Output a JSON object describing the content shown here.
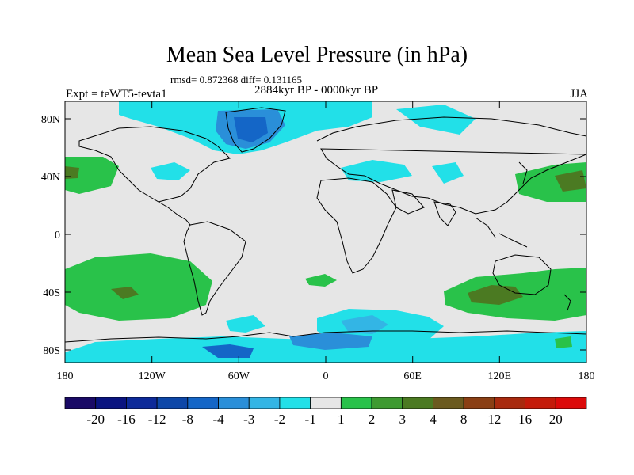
{
  "title": "Mean Sea Level Pressure (in hPa)",
  "stats": "rmsd= 0.872368 diff= 0.131165",
  "experiment": "Expt = teWT5-tevta1",
  "period": "2884kyr BP - 0000kyr BP",
  "season": "JJA",
  "lat_ticks": [
    "80N",
    "40N",
    "0",
    "40S",
    "80S"
  ],
  "lon_ticks": [
    "180",
    "120W",
    "60W",
    "0",
    "60E",
    "120E",
    "180"
  ],
  "colorbar": {
    "labels": [
      "-20",
      "-16",
      "-12",
      "-8",
      "-4",
      "-3",
      "-2",
      "-1",
      "1",
      "2",
      "3",
      "4",
      "8",
      "12",
      "16",
      "20"
    ],
    "colors": [
      "#1a0a66",
      "#0a1480",
      "#0d2a99",
      "#0d47a8",
      "#1466c7",
      "#2a8fd9",
      "#33b5e5",
      "#22e0e8",
      "#e6e6e6",
      "#29c24a",
      "#3e9a31",
      "#4b7a22",
      "#6b5a1f",
      "#8a3f14",
      "#a82a0e",
      "#c41b0a",
      "#dc0a0a"
    ]
  },
  "colors": {
    "land_fill": "#e6e6e6",
    "pos1": "#29c24a",
    "pos2": "#3e9a31",
    "pos3": "#4b7a22",
    "pos4": "#6b5a1f",
    "neg1": "#22e0e8",
    "neg2": "#33b5e5",
    "neg3": "#2a8fd9",
    "neg4": "#1466c7",
    "neg5": "#0d47a8"
  }
}
